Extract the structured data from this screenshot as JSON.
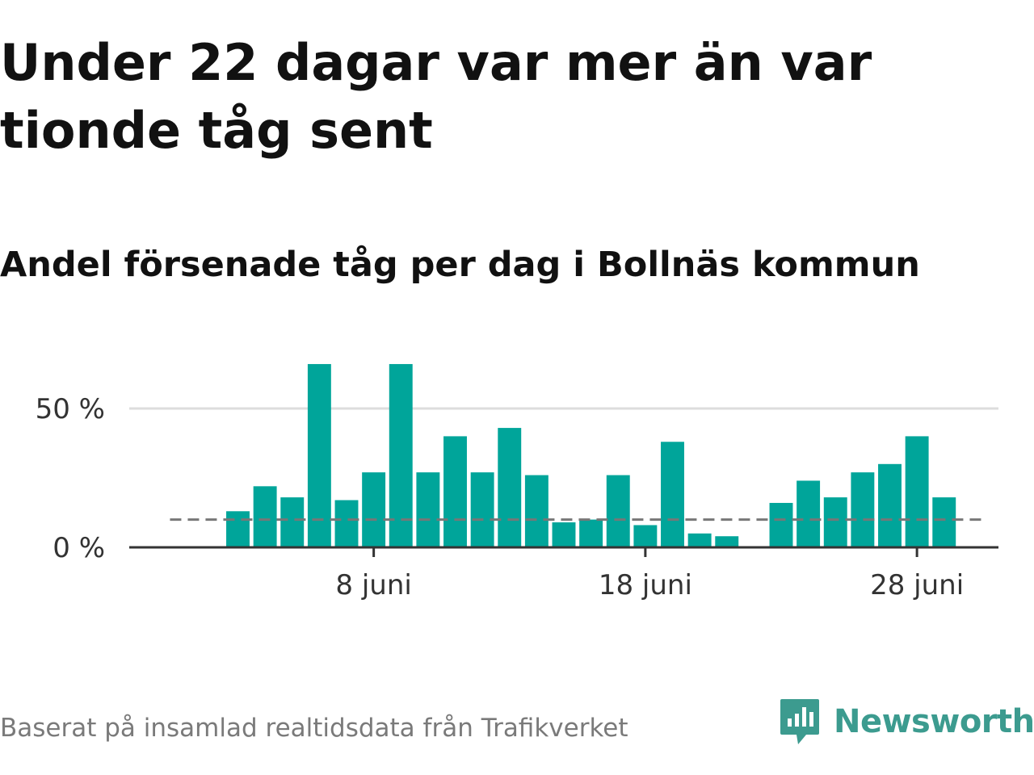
{
  "title": "Under 22 dagar var mer än var tionde tåg sent",
  "subtitle": "Andel försenade tåg per dag i Bollnäs kommun",
  "source": "Baserat på insamlad realtidsdata från Trafikverket",
  "brand": {
    "name": "Newsworthy",
    "icon": "newsworthy-logo-icon",
    "color": "#3c9b8f"
  },
  "colors": {
    "bar": "#00a59a",
    "reference_line": "#777777",
    "grid": "#dddddd",
    "axis": "#333333"
  },
  "chart_data": {
    "type": "bar",
    "title": "Andel försenade tåg per dag i Bollnäs kommun",
    "xlabel": "",
    "ylabel": "",
    "x_axis": "day of June",
    "x": [
      1,
      2,
      3,
      4,
      5,
      6,
      7,
      8,
      9,
      10,
      11,
      12,
      13,
      14,
      15,
      16,
      17,
      18,
      19,
      20,
      21,
      22,
      23,
      24,
      25,
      26,
      27,
      28,
      29,
      30
    ],
    "values": [
      null,
      null,
      13,
      22,
      18,
      66,
      17,
      27,
      66,
      27,
      40,
      27,
      43,
      26,
      9,
      10,
      26,
      8,
      38,
      5,
      4,
      null,
      16,
      24,
      18,
      27,
      30,
      40,
      18,
      null
    ],
    "unit": "%",
    "reference_line": {
      "value": 10,
      "style": "dashed",
      "from_day": 0.5,
      "to_day": 30.5
    },
    "ylim": [
      0,
      75
    ],
    "xlim": [
      -1,
      31
    ],
    "yticks": [
      {
        "value": 0,
        "label": "0 %"
      },
      {
        "value": 50,
        "label": "50 %"
      }
    ],
    "xticks": [
      {
        "value": 8,
        "label": "8 juni"
      },
      {
        "value": 18,
        "label": "18 juni"
      },
      {
        "value": 28,
        "label": "28 juni"
      }
    ],
    "grid": true,
    "legend": "none"
  }
}
